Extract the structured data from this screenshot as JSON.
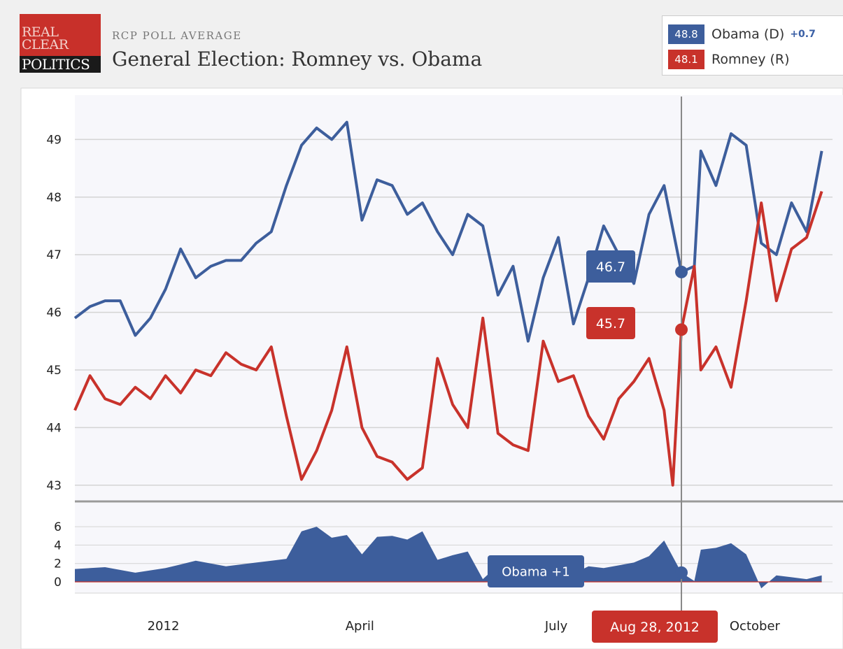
{
  "header": {
    "logo_lines": [
      "REAL",
      "CLEAR",
      "POLITICS"
    ],
    "kicker": "RCP POLL AVERAGE",
    "title": "General Election: Romney vs. Obama"
  },
  "legend": {
    "obama": {
      "value": "48.8",
      "name": "Obama (D)",
      "change": "+0.7",
      "color": "#3d5e9c"
    },
    "romney": {
      "value": "48.1",
      "name": "Romney (R)",
      "color": "#c8322b"
    }
  },
  "tooltip": {
    "date": "Aug 28, 2012",
    "obama_value": "46.7",
    "romney_value": "45.7",
    "spread": "Obama +1"
  },
  "chart_data": [
    {
      "type": "line",
      "ylim": [
        42.9,
        49.6
      ],
      "yticks": [
        43,
        44,
        45,
        46,
        47,
        48,
        49
      ],
      "x_domain": [
        "2011-11-21",
        "2012-11-06"
      ],
      "xticks": [
        {
          "date": "2012-01-01",
          "label": "2012"
        },
        {
          "date": "2012-04-01",
          "label": "April"
        },
        {
          "date": "2012-07-01",
          "label": "July"
        },
        {
          "date": "2012-10-01",
          "label": "October"
        }
      ],
      "grid": true,
      "series": [
        {
          "name": "Obama (D)",
          "color": "#3d5e9c",
          "points": [
            [
              "2011-11-21",
              45.9
            ],
            [
              "2011-11-28",
              46.1
            ],
            [
              "2011-12-05",
              46.2
            ],
            [
              "2011-12-12",
              46.2
            ],
            [
              "2011-12-19",
              45.6
            ],
            [
              "2011-12-26",
              45.9
            ],
            [
              "2012-01-02",
              46.4
            ],
            [
              "2012-01-09",
              47.1
            ],
            [
              "2012-01-16",
              46.6
            ],
            [
              "2012-01-23",
              46.8
            ],
            [
              "2012-01-30",
              46.9
            ],
            [
              "2012-02-06",
              46.9
            ],
            [
              "2012-02-13",
              47.2
            ],
            [
              "2012-02-20",
              47.4
            ],
            [
              "2012-02-27",
              48.2
            ],
            [
              "2012-03-05",
              48.9
            ],
            [
              "2012-03-12",
              49.2
            ],
            [
              "2012-03-19",
              49.0
            ],
            [
              "2012-03-26",
              49.3
            ],
            [
              "2012-04-02",
              47.6
            ],
            [
              "2012-04-09",
              48.3
            ],
            [
              "2012-04-16",
              48.2
            ],
            [
              "2012-04-23",
              47.7
            ],
            [
              "2012-04-30",
              47.9
            ],
            [
              "2012-05-07",
              47.4
            ],
            [
              "2012-05-14",
              47.0
            ],
            [
              "2012-05-21",
              47.7
            ],
            [
              "2012-05-28",
              47.5
            ],
            [
              "2012-06-04",
              46.3
            ],
            [
              "2012-06-11",
              46.8
            ],
            [
              "2012-06-18",
              45.5
            ],
            [
              "2012-06-25",
              46.6
            ],
            [
              "2012-07-02",
              47.3
            ],
            [
              "2012-07-09",
              45.8
            ],
            [
              "2012-07-16",
              46.6
            ],
            [
              "2012-07-23",
              47.5
            ],
            [
              "2012-07-30",
              47.0
            ],
            [
              "2012-08-06",
              46.5
            ],
            [
              "2012-08-13",
              47.7
            ],
            [
              "2012-08-20",
              48.2
            ],
            [
              "2012-08-28",
              46.7
            ],
            [
              "2012-09-03",
              46.8
            ],
            [
              "2012-09-06",
              48.8
            ],
            [
              "2012-09-13",
              48.2
            ],
            [
              "2012-09-20",
              49.1
            ],
            [
              "2012-09-27",
              48.9
            ],
            [
              "2012-10-04",
              47.2
            ],
            [
              "2012-10-11",
              47.0
            ],
            [
              "2012-10-18",
              47.9
            ],
            [
              "2012-10-25",
              47.4
            ],
            [
              "2012-11-01",
              48.8
            ]
          ]
        },
        {
          "name": "Romney (R)",
          "color": "#c8322b",
          "points": [
            [
              "2011-11-21",
              44.3
            ],
            [
              "2011-11-28",
              44.9
            ],
            [
              "2011-12-05",
              44.5
            ],
            [
              "2011-12-12",
              44.4
            ],
            [
              "2011-12-19",
              44.7
            ],
            [
              "2011-12-26",
              44.5
            ],
            [
              "2012-01-02",
              44.9
            ],
            [
              "2012-01-09",
              44.6
            ],
            [
              "2012-01-16",
              45.0
            ],
            [
              "2012-01-23",
              44.9
            ],
            [
              "2012-01-30",
              45.3
            ],
            [
              "2012-02-06",
              45.1
            ],
            [
              "2012-02-13",
              45.0
            ],
            [
              "2012-02-20",
              45.4
            ],
            [
              "2012-02-27",
              44.2
            ],
            [
              "2012-03-05",
              43.1
            ],
            [
              "2012-03-12",
              43.6
            ],
            [
              "2012-03-19",
              44.3
            ],
            [
              "2012-03-26",
              45.4
            ],
            [
              "2012-04-02",
              44.0
            ],
            [
              "2012-04-09",
              43.5
            ],
            [
              "2012-04-16",
              43.4
            ],
            [
              "2012-04-23",
              43.1
            ],
            [
              "2012-04-30",
              43.3
            ],
            [
              "2012-05-07",
              45.2
            ],
            [
              "2012-05-14",
              44.4
            ],
            [
              "2012-05-21",
              44.0
            ],
            [
              "2012-05-28",
              45.9
            ],
            [
              "2012-06-04",
              43.9
            ],
            [
              "2012-06-11",
              43.7
            ],
            [
              "2012-06-18",
              43.6
            ],
            [
              "2012-06-25",
              45.5
            ],
            [
              "2012-07-02",
              44.8
            ],
            [
              "2012-07-09",
              44.9
            ],
            [
              "2012-07-16",
              44.2
            ],
            [
              "2012-07-23",
              43.8
            ],
            [
              "2012-07-30",
              44.5
            ],
            [
              "2012-08-06",
              44.8
            ],
            [
              "2012-08-13",
              45.2
            ],
            [
              "2012-08-20",
              44.3
            ],
            [
              "2012-08-24",
              43.0
            ],
            [
              "2012-08-28",
              45.7
            ],
            [
              "2012-09-03",
              46.8
            ],
            [
              "2012-09-06",
              45.0
            ],
            [
              "2012-09-13",
              45.4
            ],
            [
              "2012-09-20",
              44.7
            ],
            [
              "2012-09-27",
              46.2
            ],
            [
              "2012-10-04",
              47.9
            ],
            [
              "2012-10-11",
              46.2
            ],
            [
              "2012-10-18",
              47.1
            ],
            [
              "2012-10-25",
              47.3
            ],
            [
              "2012-11-01",
              48.1
            ]
          ]
        }
      ]
    },
    {
      "type": "area",
      "ylim": [
        0,
        7
      ],
      "yticks": [
        0,
        2,
        4,
        6
      ],
      "series": [
        {
          "name": "Obama +1",
          "color": "#3d5e9c",
          "points": [
            [
              "2011-11-21",
              1.4
            ],
            [
              "2011-12-05",
              1.6
            ],
            [
              "2011-12-19",
              1.0
            ],
            [
              "2012-01-02",
              1.5
            ],
            [
              "2012-01-16",
              2.3
            ],
            [
              "2012-01-30",
              1.7
            ],
            [
              "2012-02-13",
              2.1
            ],
            [
              "2012-02-27",
              2.5
            ],
            [
              "2012-03-05",
              5.5
            ],
            [
              "2012-03-12",
              6.0
            ],
            [
              "2012-03-19",
              4.8
            ],
            [
              "2012-03-26",
              5.1
            ],
            [
              "2012-04-02",
              3.0
            ],
            [
              "2012-04-09",
              4.9
            ],
            [
              "2012-04-16",
              5.0
            ],
            [
              "2012-04-23",
              4.6
            ],
            [
              "2012-04-30",
              5.5
            ],
            [
              "2012-05-07",
              2.4
            ],
            [
              "2012-05-14",
              2.9
            ],
            [
              "2012-05-21",
              3.3
            ],
            [
              "2012-05-28",
              0.3
            ],
            [
              "2012-06-04",
              1.8
            ],
            [
              "2012-06-11",
              1.6
            ],
            [
              "2012-06-18",
              1.7
            ],
            [
              "2012-06-25",
              0.8
            ],
            [
              "2012-07-02",
              2.0
            ],
            [
              "2012-07-09",
              0.9
            ],
            [
              "2012-07-16",
              1.7
            ],
            [
              "2012-07-23",
              1.5
            ],
            [
              "2012-08-06",
              2.1
            ],
            [
              "2012-08-13",
              2.8
            ],
            [
              "2012-08-20",
              4.5
            ],
            [
              "2012-08-28",
              1.0
            ],
            [
              "2012-09-03",
              0.1
            ],
            [
              "2012-09-06",
              3.5
            ],
            [
              "2012-09-13",
              3.7
            ],
            [
              "2012-09-20",
              4.2
            ],
            [
              "2012-09-27",
              3.0
            ],
            [
              "2012-10-04",
              -0.7
            ],
            [
              "2012-10-11",
              0.7
            ],
            [
              "2012-10-18",
              0.5
            ],
            [
              "2012-10-25",
              0.3
            ],
            [
              "2012-11-01",
              0.7
            ]
          ]
        }
      ]
    }
  ]
}
